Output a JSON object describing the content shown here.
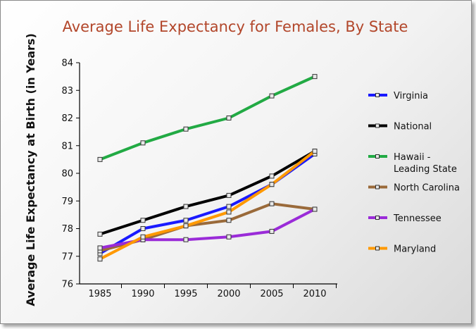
{
  "chart_data": {
    "type": "line",
    "title": "Average Life Expectancy for Females, By State",
    "title_color": "#b2462a",
    "ylabel": "Average Life Expectancy at Birth (in Years)",
    "xlabel": "",
    "x": [
      1985,
      1990,
      1995,
      2000,
      2005,
      2010
    ],
    "ylim": [
      76,
      84
    ],
    "yticks": [
      76,
      77,
      78,
      79,
      80,
      81,
      82,
      83,
      84
    ],
    "grid": false,
    "legend_position": "right",
    "series": [
      {
        "name": "Virginia",
        "color": "#1a1aff",
        "values": [
          77.1,
          78.0,
          78.3,
          78.8,
          79.6,
          80.7
        ]
      },
      {
        "name": "National",
        "color": "#000000",
        "values": [
          77.8,
          78.3,
          78.8,
          79.2,
          79.9,
          80.8
        ]
      },
      {
        "name": "Hawaii - Leading State",
        "color": "#22aa44",
        "values": [
          80.5,
          81.1,
          81.6,
          82.0,
          82.8,
          83.5
        ]
      },
      {
        "name": "North Carolina",
        "color": "#9a6a3a",
        "values": [
          77.2,
          77.6,
          78.1,
          78.3,
          78.9,
          78.7
        ]
      },
      {
        "name": "Tennessee",
        "color": "#9a2bd8",
        "values": [
          77.3,
          77.6,
          77.6,
          77.7,
          77.9,
          78.7
        ]
      },
      {
        "name": "Maryland",
        "color": "#ff9900",
        "values": [
          76.9,
          77.7,
          78.1,
          78.6,
          79.6,
          80.8
        ]
      }
    ],
    "legend_lines": [
      [
        "Virginia"
      ],
      [
        "National"
      ],
      [
        "Hawaii -",
        "Leading State"
      ],
      [
        "North Carolina"
      ],
      [
        "Tennessee"
      ],
      [
        "Maryland"
      ]
    ]
  }
}
